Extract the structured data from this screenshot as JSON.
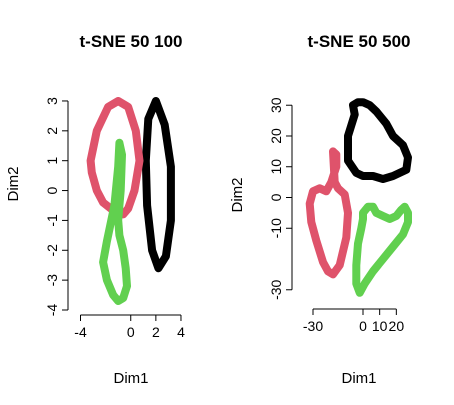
{
  "chart_data": [
    {
      "type": "line",
      "title": "t-SNE 50 100",
      "xlabel": "Dim1",
      "ylabel": "Dim2",
      "xlim": [
        -4.2,
        4.4
      ],
      "ylim": [
        -4,
        3.3
      ],
      "xticks": [
        -4,
        0,
        2,
        4
      ],
      "yticks": [
        -4,
        -3,
        -2,
        -1,
        0,
        1,
        2,
        3
      ],
      "grid": false,
      "series": [
        {
          "color": "#000000",
          "x": [
            2.0,
            2.7,
            3.2,
            3.2,
            2.8,
            2.2,
            1.7,
            1.3,
            1.2,
            1.4,
            2.0
          ],
          "y": [
            3.0,
            2.2,
            0.8,
            -1.0,
            -2.2,
            -2.6,
            -2.0,
            -0.5,
            1.0,
            2.4,
            3.0
          ]
        },
        {
          "color": "#DF536B",
          "x": [
            -1.0,
            -0.2,
            0.4,
            0.7,
            0.3,
            -0.2,
            -0.6,
            -1.0,
            -1.6,
            -2.2,
            -2.7,
            -3.1,
            -3.2,
            -2.7,
            -1.8,
            -1.0
          ],
          "y": [
            3.0,
            2.8,
            2.0,
            1.0,
            0.0,
            -0.6,
            -0.8,
            -0.75,
            -0.6,
            -0.4,
            0.0,
            0.6,
            1.0,
            2.0,
            2.8,
            3.0
          ]
        },
        {
          "color": "#61D04F",
          "x": [
            -0.9,
            -0.7,
            -0.8,
            -0.9,
            -1.0,
            -0.9,
            -0.6,
            -0.4,
            -0.3,
            -0.6,
            -1.0,
            -1.4,
            -1.9,
            -2.2,
            -1.9,
            -1.3,
            -1.0,
            -0.9
          ],
          "y": [
            1.6,
            1.2,
            0.0,
            -0.5,
            -1.0,
            -1.5,
            -2.0,
            -2.6,
            -3.2,
            -3.6,
            -3.7,
            -3.5,
            -3.0,
            -2.4,
            -1.7,
            -0.5,
            0.8,
            1.6
          ]
        }
      ]
    },
    {
      "type": "line",
      "title": "t-SNE 50 500",
      "xlabel": "Dim1",
      "ylabel": "Dim2",
      "xlim": [
        -36,
        30
      ],
      "ylim": [
        -33,
        33
      ],
      "xticks": [
        -30,
        0,
        10,
        20
      ],
      "yticks": [
        -30,
        -10,
        0,
        10,
        20,
        30
      ],
      "grid": false,
      "series": [
        {
          "color": "#000000",
          "x": [
            -5,
            -9,
            -9,
            -4,
            0,
            2,
            6,
            12,
            18,
            26,
            27,
            24,
            18,
            14,
            8,
            4,
            0,
            -3,
            -6,
            -5
          ],
          "y": [
            27,
            20,
            12,
            8,
            7,
            7,
            7,
            6,
            7,
            9,
            13,
            17,
            20,
            24,
            28,
            30,
            31,
            31,
            30,
            27
          ]
        },
        {
          "color": "#DF536B",
          "x": [
            -18,
            -16,
            -16,
            -19,
            -22,
            -26,
            -30,
            -32,
            -31,
            -28,
            -24,
            -21,
            -18,
            -14,
            -10,
            -9,
            -11,
            -13,
            -15,
            -17,
            -18
          ],
          "y": [
            15,
            14,
            10,
            5,
            2,
            3,
            2,
            -2,
            -8,
            -14,
            -21,
            -24,
            -25,
            -22,
            -13,
            -5,
            1,
            2,
            3,
            5,
            15
          ]
        },
        {
          "color": "#61D04F",
          "x": [
            0,
            3,
            6,
            8,
            12,
            16,
            20,
            23,
            25,
            27,
            27,
            24,
            18,
            12,
            6,
            1,
            -2,
            -4,
            -4,
            -3,
            -1,
            0,
            0
          ],
          "y": [
            -5,
            -3,
            -3,
            -5,
            -6,
            -7,
            -6,
            -4,
            -3,
            -5,
            -8,
            -12,
            -16,
            -20,
            -24,
            -28,
            -31,
            -28,
            -22,
            -15,
            -10,
            -7,
            -5
          ]
        }
      ]
    }
  ]
}
